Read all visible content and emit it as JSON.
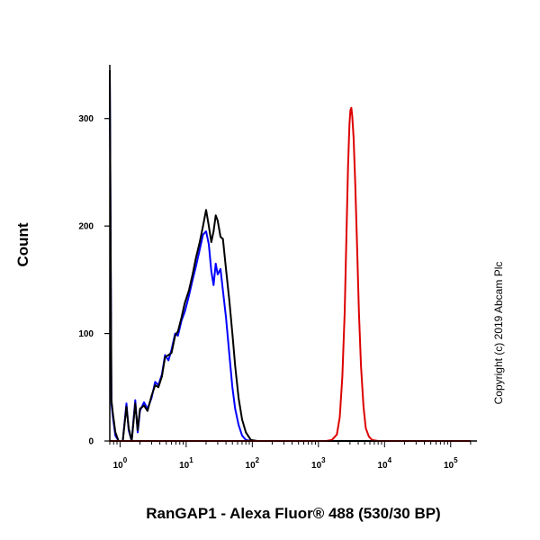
{
  "chart_data": {
    "type": "line",
    "title": "",
    "xlabel": "RanGAP1 - Alexa Fluor® 488 (530/30 BP)",
    "ylabel": "Count",
    "x_scale": "log",
    "xlim": [
      0.7,
      250000
    ],
    "ylim": [
      0,
      350
    ],
    "y_ticks": [
      0,
      100,
      200,
      300
    ],
    "x_ticks": [
      {
        "value": 1,
        "base": "10",
        "exp": "0"
      },
      {
        "value": 10,
        "base": "10",
        "exp": "1"
      },
      {
        "value": 100,
        "base": "10",
        "exp": "2"
      },
      {
        "value": 1000,
        "base": "10",
        "exp": "3"
      },
      {
        "value": 10000,
        "base": "10",
        "exp": "4"
      },
      {
        "value": 100000,
        "base": "10",
        "exp": "5"
      }
    ],
    "series": [
      {
        "color": "#0000ff",
        "points": [
          [
            0.7,
            345
          ],
          [
            0.74,
            35
          ],
          [
            0.78,
            22
          ],
          [
            0.85,
            5
          ],
          [
            0.95,
            0
          ],
          [
            1.1,
            0
          ],
          [
            1.25,
            35
          ],
          [
            1.35,
            10
          ],
          [
            1.5,
            0
          ],
          [
            1.7,
            38
          ],
          [
            1.85,
            8
          ],
          [
            2.0,
            28
          ],
          [
            2.3,
            36
          ],
          [
            2.6,
            30
          ],
          [
            3.0,
            40
          ],
          [
            3.4,
            55
          ],
          [
            3.8,
            52
          ],
          [
            4.3,
            62
          ],
          [
            4.8,
            80
          ],
          [
            5.4,
            75
          ],
          [
            6.0,
            85
          ],
          [
            6.8,
            100
          ],
          [
            7.5,
            98
          ],
          [
            8.5,
            112
          ],
          [
            9.5,
            120
          ],
          [
            11,
            135
          ],
          [
            12.5,
            150
          ],
          [
            14,
            162
          ],
          [
            16,
            178
          ],
          [
            18,
            192
          ],
          [
            20,
            195
          ],
          [
            22,
            183
          ],
          [
            24,
            158
          ],
          [
            26,
            145
          ],
          [
            28,
            165
          ],
          [
            30,
            155
          ],
          [
            33,
            160
          ],
          [
            36,
            140
          ],
          [
            40,
            115
          ],
          [
            45,
            80
          ],
          [
            50,
            50
          ],
          [
            55,
            30
          ],
          [
            62,
            15
          ],
          [
            70,
            5
          ],
          [
            80,
            1
          ],
          [
            95,
            0
          ],
          [
            120,
            0
          ],
          [
            200000,
            0
          ]
        ]
      },
      {
        "color": "#000000",
        "points": [
          [
            0.7,
            345
          ],
          [
            0.74,
            38
          ],
          [
            0.78,
            25
          ],
          [
            0.85,
            8
          ],
          [
            0.95,
            0
          ],
          [
            1.1,
            0
          ],
          [
            1.25,
            32
          ],
          [
            1.35,
            12
          ],
          [
            1.5,
            0
          ],
          [
            1.7,
            35
          ],
          [
            1.85,
            10
          ],
          [
            2.0,
            30
          ],
          [
            2.3,
            33
          ],
          [
            2.6,
            28
          ],
          [
            3.0,
            42
          ],
          [
            3.4,
            52
          ],
          [
            3.8,
            50
          ],
          [
            4.3,
            60
          ],
          [
            4.8,
            78
          ],
          [
            5.4,
            80
          ],
          [
            6.0,
            82
          ],
          [
            6.8,
            98
          ],
          [
            7.5,
            102
          ],
          [
            8.5,
            115
          ],
          [
            9.5,
            128
          ],
          [
            11,
            140
          ],
          [
            12.5,
            155
          ],
          [
            14,
            170
          ],
          [
            16,
            185
          ],
          [
            18,
            200
          ],
          [
            20,
            215
          ],
          [
            22,
            200
          ],
          [
            24,
            185
          ],
          [
            26,
            195
          ],
          [
            28,
            210
          ],
          [
            30,
            205
          ],
          [
            33,
            190
          ],
          [
            36,
            188
          ],
          [
            40,
            160
          ],
          [
            45,
            130
          ],
          [
            50,
            100
          ],
          [
            55,
            70
          ],
          [
            62,
            40
          ],
          [
            70,
            20
          ],
          [
            80,
            8
          ],
          [
            95,
            1
          ],
          [
            120,
            0
          ],
          [
            200000,
            0
          ]
        ]
      },
      {
        "color": "#dd0000",
        "points": [
          [
            0.7,
            0
          ],
          [
            1300,
            0
          ],
          [
            1600,
            1
          ],
          [
            1900,
            6
          ],
          [
            2100,
            22
          ],
          [
            2300,
            60
          ],
          [
            2500,
            120
          ],
          [
            2650,
            190
          ],
          [
            2800,
            255
          ],
          [
            2950,
            295
          ],
          [
            3050,
            308
          ],
          [
            3150,
            310
          ],
          [
            3250,
            302
          ],
          [
            3400,
            282
          ],
          [
            3600,
            240
          ],
          [
            3850,
            180
          ],
          [
            4100,
            120
          ],
          [
            4400,
            70
          ],
          [
            4800,
            32
          ],
          [
            5200,
            12
          ],
          [
            5800,
            4
          ],
          [
            6500,
            1
          ],
          [
            8000,
            0
          ],
          [
            200000,
            0
          ]
        ]
      }
    ]
  },
  "copyright": "Copyright (c) 2019 Abcam Plc"
}
